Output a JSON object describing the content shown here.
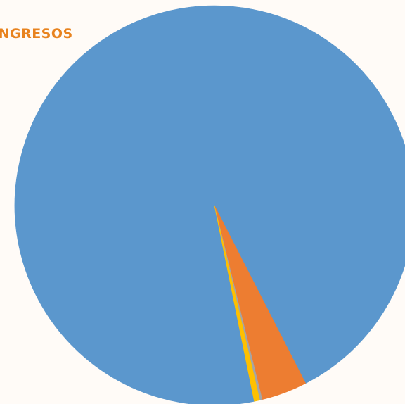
{
  "chart_data": {
    "type": "pie",
    "title": "INGRESOS",
    "slices": [
      {
        "value": 95.65,
        "color": "#5b97cd"
      },
      {
        "value": 3.7,
        "color": "#ed7d31"
      },
      {
        "value": 0.2,
        "color": "#a5a5a5"
      },
      {
        "value": 0.45,
        "color": "#ffc000"
      }
    ],
    "start_angle_deg": 168.5,
    "legend": "none",
    "data_labels": false
  }
}
